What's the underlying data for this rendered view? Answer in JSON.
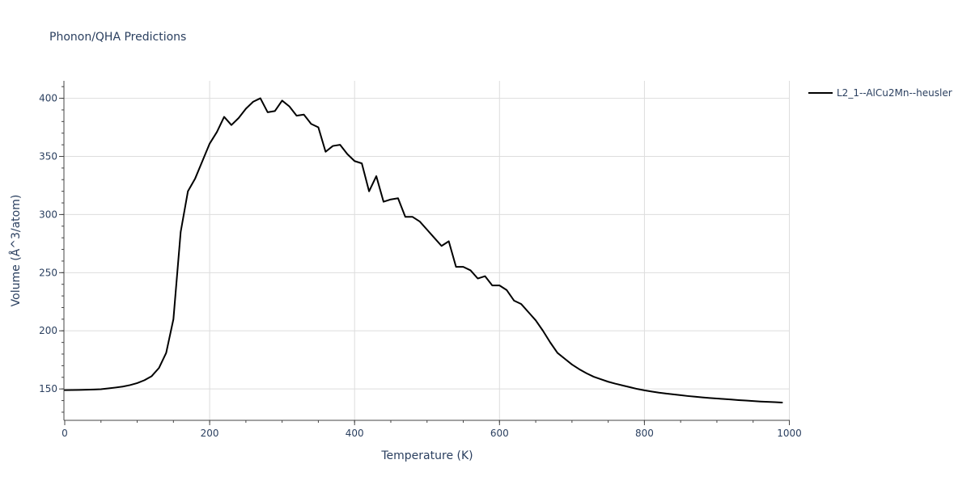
{
  "chart_data": {
    "type": "line",
    "title": "Phonon/QHA Predictions",
    "xlabel": "Temperature (K)",
    "ylabel": "Volume (Å^3/atom)",
    "xlim": [
      0,
      1000
    ],
    "ylim": [
      123,
      415
    ],
    "x_ticks": [
      0,
      200,
      400,
      600,
      800,
      1000
    ],
    "y_ticks": [
      150,
      200,
      250,
      300,
      350,
      400
    ],
    "x_minor_step": 50,
    "y_minor_step": 10,
    "grid": true,
    "legend_position": "top-right",
    "series": [
      {
        "name": "L2_1--AlCu2Mn--heusler",
        "color": "#000000",
        "x": [
          0,
          10,
          20,
          30,
          40,
          50,
          60,
          70,
          80,
          90,
          100,
          110,
          120,
          130,
          140,
          150,
          160,
          170,
          180,
          190,
          200,
          210,
          220,
          230,
          240,
          250,
          260,
          270,
          280,
          290,
          300,
          310,
          320,
          330,
          340,
          350,
          360,
          370,
          380,
          390,
          400,
          410,
          420,
          430,
          440,
          450,
          460,
          470,
          480,
          490,
          500,
          510,
          520,
          530,
          540,
          550,
          560,
          570,
          580,
          590,
          600,
          610,
          620,
          630,
          640,
          650,
          660,
          670,
          680,
          690,
          700,
          710,
          720,
          730,
          740,
          750,
          760,
          770,
          780,
          790,
          800,
          810,
          820,
          830,
          840,
          850,
          860,
          870,
          880,
          890,
          900,
          910,
          920,
          930,
          940,
          950,
          960,
          970,
          980,
          990
        ],
        "y": [
          149,
          149.1,
          149.2,
          149.3,
          149.5,
          149.8,
          150.5,
          151.2,
          152,
          153.3,
          155,
          157.5,
          161,
          168,
          181,
          210,
          285,
          320,
          331,
          346,
          361,
          371,
          384,
          377,
          383,
          391,
          397,
          400,
          388,
          389,
          398,
          393,
          385,
          386,
          378,
          375,
          354,
          359,
          360,
          352,
          346,
          344,
          320,
          333,
          311,
          313,
          314,
          298,
          298,
          294,
          287,
          280,
          273,
          277,
          255,
          255,
          252,
          245,
          247,
          239,
          239,
          235,
          226,
          223,
          216,
          209,
          200,
          190,
          181,
          176,
          171,
          167,
          163.5,
          160.5,
          158.3,
          156.2,
          154.5,
          153,
          151.5,
          150,
          148.8,
          147.8,
          146.8,
          146,
          145.3,
          144.6,
          143.9,
          143.3,
          142.7,
          142.2,
          141.8,
          141.3,
          140.9,
          140.4,
          140,
          139.6,
          139.2,
          138.9,
          138.6,
          138.3
        ]
      }
    ]
  }
}
